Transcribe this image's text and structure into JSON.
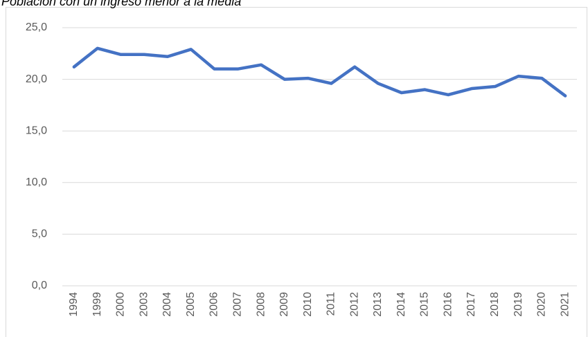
{
  "chart_data": {
    "type": "line",
    "title": "Población con un ingreso menor a la media",
    "categories": [
      "1994",
      "1999",
      "2000",
      "2003",
      "2004",
      "2005",
      "2006",
      "2007",
      "2008",
      "2009",
      "2010",
      "2011",
      "2012",
      "2013",
      "2014",
      "2015",
      "2016",
      "2017",
      "2018",
      "2019",
      "2020",
      "2021"
    ],
    "values": [
      21.2,
      23.0,
      22.4,
      22.4,
      22.2,
      22.9,
      21.0,
      21.0,
      21.4,
      20.0,
      20.1,
      19.6,
      21.2,
      19.6,
      18.7,
      19.0,
      18.5,
      19.1,
      19.3,
      20.3,
      20.1,
      18.4
    ],
    "color": "#4472c4",
    "ylim": [
      0,
      25
    ],
    "yticks": [
      {
        "value": 0,
        "label": "0,0"
      },
      {
        "value": 5,
        "label": "5,0"
      },
      {
        "value": 10,
        "label": "10,0"
      },
      {
        "value": 15,
        "label": "15,0"
      },
      {
        "value": 20,
        "label": "20,0"
      },
      {
        "value": 25,
        "label": "25,0"
      }
    ],
    "grid": true
  }
}
